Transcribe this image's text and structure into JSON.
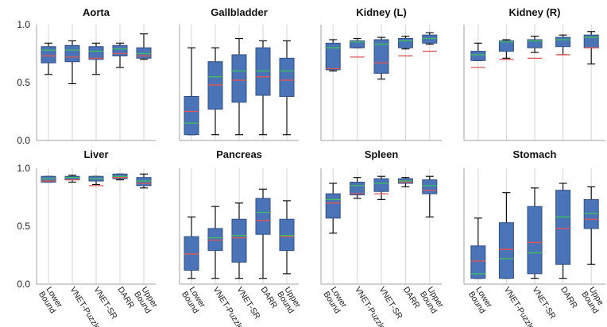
{
  "chart_data": {
    "type": "box",
    "categories": [
      "Lower Bound",
      "VNET-Puzzle",
      "VNET-SR",
      "DARR",
      "Upper Bound"
    ],
    "category_lines": [
      [
        "Lower",
        "Bound"
      ],
      [
        "VNET-Puzzle"
      ],
      [
        "VNET-SR"
      ],
      [
        "DARR"
      ],
      [
        "Upper",
        "Bound"
      ]
    ],
    "category_lines_clipped": [
      [
        "Lower",
        "Bound"
      ],
      [
        "VNET-Puzzle"
      ],
      [
        "VNET-SR"
      ],
      [
        "DARR"
      ],
      [
        "Uppe",
        "Bound"
      ]
    ],
    "yticks": [
      "0.0",
      "0.5",
      "1.0"
    ],
    "ylim": [
      0,
      1
    ],
    "colors": {
      "box_fill": "#4a73b8",
      "box_edge": "#2f4f85",
      "median": "#3fbf5a",
      "mean": "#e05555",
      "axis": "#b5b5b5",
      "whisker": "#111111"
    },
    "panels": [
      {
        "title": "Aorta",
        "boxes": [
          {
            "whislo": 0.57,
            "q1": 0.67,
            "med": 0.78,
            "mean": 0.73,
            "q3": 0.81,
            "whishi": 0.84
          },
          {
            "whislo": 0.49,
            "q1": 0.68,
            "med": 0.78,
            "mean": 0.72,
            "q3": 0.82,
            "whishi": 0.86
          },
          {
            "whislo": 0.57,
            "q1": 0.7,
            "med": 0.77,
            "mean": 0.71,
            "q3": 0.81,
            "whishi": 0.84
          },
          {
            "whislo": 0.63,
            "q1": 0.73,
            "med": 0.79,
            "mean": 0.75,
            "q3": 0.82,
            "whishi": 0.84
          },
          {
            "whislo": 0.7,
            "q1": 0.71,
            "med": 0.75,
            "mean": 0.73,
            "q3": 0.8,
            "whishi": 0.92
          }
        ]
      },
      {
        "title": "Gallbladder",
        "boxes": [
          {
            "whislo": 0.05,
            "q1": 0.05,
            "med": 0.15,
            "mean": 0.25,
            "q3": 0.38,
            "whishi": 0.8
          },
          {
            "whislo": 0.05,
            "q1": 0.27,
            "med": 0.55,
            "mean": 0.48,
            "q3": 0.68,
            "whishi": 0.8
          },
          {
            "whislo": 0.05,
            "q1": 0.33,
            "med": 0.6,
            "mean": 0.52,
            "q3": 0.74,
            "whishi": 0.88
          },
          {
            "whislo": 0.05,
            "q1": 0.39,
            "med": 0.6,
            "mean": 0.55,
            "q3": 0.8,
            "whishi": 0.86
          },
          {
            "whislo": 0.05,
            "q1": 0.38,
            "med": 0.6,
            "mean": 0.52,
            "q3": 0.71,
            "whishi": 0.86
          }
        ]
      },
      {
        "title": "Kidney (L)",
        "boxes": [
          {
            "whislo": 0.6,
            "q1": 0.61,
            "med": 0.8,
            "mean": 0.62,
            "q3": 0.84,
            "whishi": 0.87
          },
          {
            "whislo": 0.8,
            "q1": 0.8,
            "med": 0.85,
            "mean": 0.72,
            "q3": 0.86,
            "whishi": 0.88
          },
          {
            "whislo": 0.53,
            "q1": 0.58,
            "med": 0.83,
            "mean": 0.67,
            "q3": 0.87,
            "whishi": 0.89
          },
          {
            "whislo": 0.79,
            "q1": 0.8,
            "med": 0.86,
            "mean": 0.73,
            "q3": 0.88,
            "whishi": 0.9
          },
          {
            "whislo": 0.83,
            "q1": 0.84,
            "med": 0.88,
            "mean": 0.77,
            "q3": 0.91,
            "whishi": 0.93
          }
        ]
      },
      {
        "title": "Kidney (R)",
        "boxes": [
          {
            "whislo": 0.69,
            "q1": 0.69,
            "med": 0.74,
            "mean": 0.63,
            "q3": 0.77,
            "whishi": 0.84
          },
          {
            "whislo": 0.71,
            "q1": 0.77,
            "med": 0.85,
            "mean": 0.7,
            "q3": 0.86,
            "whishi": 0.87
          },
          {
            "whislo": 0.76,
            "q1": 0.8,
            "med": 0.86,
            "mean": 0.71,
            "q3": 0.87,
            "whishi": 0.9
          },
          {
            "whislo": 0.74,
            "q1": 0.81,
            "med": 0.87,
            "mean": 0.74,
            "q3": 0.89,
            "whishi": 0.91
          },
          {
            "whislo": 0.66,
            "q1": 0.8,
            "med": 0.89,
            "mean": 0.8,
            "q3": 0.91,
            "whishi": 0.94
          }
        ]
      },
      {
        "title": "Liver",
        "boxes": [
          {
            "whislo": 0.88,
            "q1": 0.88,
            "med": 0.91,
            "mean": 0.89,
            "q3": 0.93,
            "whishi": 0.93
          },
          {
            "whislo": 0.88,
            "q1": 0.9,
            "med": 0.92,
            "mean": 0.9,
            "q3": 0.93,
            "whishi": 0.94
          },
          {
            "whislo": 0.86,
            "q1": 0.89,
            "med": 0.91,
            "mean": 0.85,
            "q3": 0.93,
            "whishi": 0.93
          },
          {
            "whislo": 0.9,
            "q1": 0.91,
            "med": 0.93,
            "mean": 0.92,
            "q3": 0.95,
            "whishi": 0.95
          },
          {
            "whislo": 0.83,
            "q1": 0.85,
            "med": 0.89,
            "mean": 0.87,
            "q3": 0.92,
            "whishi": 0.95
          }
        ]
      },
      {
        "title": "Pancreas",
        "boxes": [
          {
            "whislo": 0.05,
            "q1": 0.12,
            "med": 0.26,
            "mean": 0.26,
            "q3": 0.41,
            "whishi": 0.58
          },
          {
            "whislo": 0.05,
            "q1": 0.29,
            "med": 0.4,
            "mean": 0.38,
            "q3": 0.48,
            "whishi": 0.67
          },
          {
            "whislo": 0.05,
            "q1": 0.19,
            "med": 0.42,
            "mean": 0.4,
            "q3": 0.56,
            "whishi": 0.7
          },
          {
            "whislo": 0.05,
            "q1": 0.43,
            "med": 0.62,
            "mean": 0.55,
            "q3": 0.74,
            "whishi": 0.82
          },
          {
            "whislo": 0.09,
            "q1": 0.29,
            "med": 0.42,
            "mean": 0.41,
            "q3": 0.56,
            "whishi": 0.72
          }
        ]
      },
      {
        "title": "Spleen",
        "boxes": [
          {
            "whislo": 0.44,
            "q1": 0.57,
            "med": 0.73,
            "mean": 0.7,
            "q3": 0.78,
            "whishi": 0.87
          },
          {
            "whislo": 0.74,
            "q1": 0.77,
            "med": 0.85,
            "mean": 0.78,
            "q3": 0.88,
            "whishi": 0.92
          },
          {
            "whislo": 0.73,
            "q1": 0.8,
            "med": 0.87,
            "mean": 0.78,
            "q3": 0.91,
            "whishi": 0.93
          },
          {
            "whislo": 0.84,
            "q1": 0.87,
            "med": 0.89,
            "mean": 0.88,
            "q3": 0.91,
            "whishi": 0.92
          },
          {
            "whislo": 0.58,
            "q1": 0.78,
            "med": 0.85,
            "mean": 0.81,
            "q3": 0.9,
            "whishi": 0.93
          }
        ]
      },
      {
        "title": "Stomach",
        "boxes": [
          {
            "whislo": 0.05,
            "q1": 0.05,
            "med": 0.09,
            "mean": 0.2,
            "q3": 0.33,
            "whishi": 0.57
          },
          {
            "whislo": 0.05,
            "q1": 0.05,
            "med": 0.22,
            "mean": 0.3,
            "q3": 0.53,
            "whishi": 0.79
          },
          {
            "whislo": 0.05,
            "q1": 0.09,
            "med": 0.27,
            "mean": 0.36,
            "q3": 0.67,
            "whishi": 0.83
          },
          {
            "whislo": 0.05,
            "q1": 0.17,
            "med": 0.58,
            "mean": 0.48,
            "q3": 0.81,
            "whishi": 0.87
          },
          {
            "whislo": 0.17,
            "q1": 0.48,
            "med": 0.61,
            "mean": 0.56,
            "q3": 0.73,
            "whishi": 0.84
          }
        ]
      }
    ]
  }
}
